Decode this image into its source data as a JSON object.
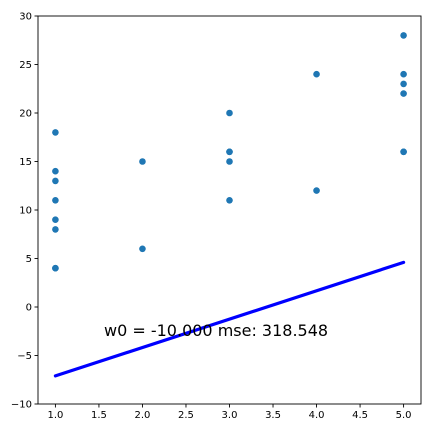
{
  "chart_data": {
    "type": "scatter",
    "title": "",
    "xlabel": "",
    "ylabel": "",
    "xlim": [
      0.8,
      5.2
    ],
    "ylim": [
      -10,
      30
    ],
    "grid": false,
    "x_ticks": [
      "1.0",
      "1.5",
      "2.0",
      "2.5",
      "3.0",
      "3.5",
      "4.0",
      "4.5",
      "5.0"
    ],
    "y_ticks": [
      "−10",
      "−5",
      "0",
      "5",
      "10",
      "15",
      "20",
      "25",
      "30"
    ],
    "points": {
      "color": "#1f77b4",
      "x": [
        1,
        1,
        1,
        1,
        1,
        1,
        1,
        1,
        2,
        2,
        3,
        3,
        3,
        3,
        3,
        4,
        4,
        5,
        5,
        5,
        5,
        5,
        5
      ],
      "y": [
        18,
        14,
        13,
        11,
        9,
        8,
        4,
        4,
        15,
        6,
        20,
        16,
        16,
        15,
        11,
        24,
        12,
        28,
        24,
        23,
        22,
        16,
        16
      ]
    },
    "fit_line": {
      "color": "#0000ff",
      "x": [
        1.0,
        5.0
      ],
      "y": [
        -7.1,
        4.6
      ]
    },
    "annotation": "w0 = -10.000 mse: 318.548"
  }
}
